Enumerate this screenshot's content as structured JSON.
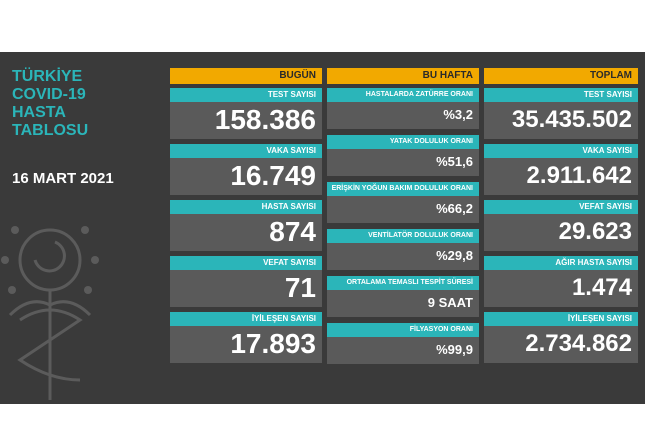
{
  "title": "TÜRKİYE\nCOVID-19\nHASTA\nTABLOSU",
  "date": "16 MART 2021",
  "today": {
    "header": "BUGÜN",
    "items": [
      {
        "label": "TEST SAYISI",
        "value": "158.386"
      },
      {
        "label": "VAKA SAYISI",
        "value": "16.749"
      },
      {
        "label": "HASTA SAYISI",
        "value": "874"
      },
      {
        "label": "VEFAT SAYISI",
        "value": "71"
      },
      {
        "label": "İYİLEŞEN SAYISI",
        "value": "17.893"
      }
    ]
  },
  "week": {
    "header": "BU HAFTA",
    "items": [
      {
        "label": "HASTALARDA ZATÜRRE ORANI",
        "value": "%3,2"
      },
      {
        "label": "YATAK DOLULUK ORANI",
        "value": "%51,6"
      },
      {
        "label": "ERİŞKİN YOĞUN BAKIM DOLULUK ORANI",
        "value": "%66,2"
      },
      {
        "label": "VENTİLATÖR DOLULUK ORANI",
        "value": "%29,8"
      },
      {
        "label": "ORTALAMA TEMASLI TESPİT SÜRESİ",
        "value": "9 SAAT"
      },
      {
        "label": "FİLYASYON ORANI",
        "value": "%99,9"
      }
    ]
  },
  "total": {
    "header": "TOPLAM",
    "items": [
      {
        "label": "TEST SAYISI",
        "value": "35.435.502"
      },
      {
        "label": "VAKA SAYISI",
        "value": "2.911.642"
      },
      {
        "label": "VEFAT SAYISI",
        "value": "29.623"
      },
      {
        "label": "AĞIR HASTA SAYISI",
        "value": "1.474"
      },
      {
        "label": "İYİLEŞEN SAYISI",
        "value": "2.734.862"
      }
    ]
  },
  "colors": {
    "background": "#3a3a3a",
    "header": "#f2a900",
    "label": "#2bb5b9",
    "cell": "#5a5a5a"
  },
  "icon": "ministry-emblem-icon"
}
